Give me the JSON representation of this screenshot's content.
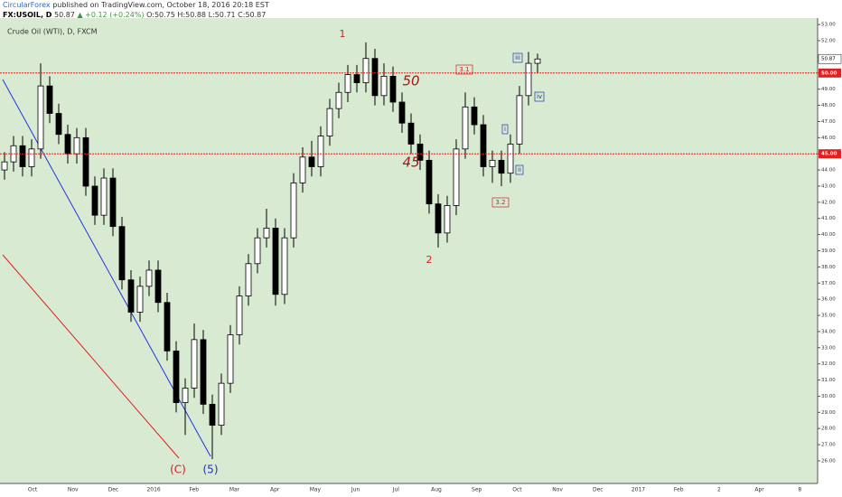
{
  "header": {
    "author": "CircularForex",
    "published": "published on TradingView.com, October 18, 2016 20:18 EST",
    "symbol": "FX:USOIL, D",
    "last": "50.87",
    "change": "▲ +0.12 (+0.24%)",
    "ohlc": "O:50.75 H:50.88 L:50.71 C:50.87"
  },
  "chart_data": {
    "type": "candlestick",
    "title": "Crude Oil (WTI), D, FXCM",
    "open": [
      44.0,
      44.5,
      45.5,
      44.2,
      45.3,
      49.2,
      47.5,
      46.2,
      45,
      46,
      43,
      41.2,
      43.5,
      40.5,
      37.2,
      35.2,
      36.8,
      37.8,
      35.8,
      32.8,
      29.6,
      30.5,
      33.5,
      29.5,
      28.2,
      30.8,
      33.8,
      36.2,
      38.2,
      39.8,
      40.4,
      36.3,
      39.8,
      43.2,
      44.8,
      44.2,
      46.1,
      47.8,
      48.8,
      49.9,
      49.4,
      50.9,
      48.6,
      49.8,
      48.2,
      46.9,
      45.6,
      44.6,
      41.9,
      40.1,
      41.8,
      45.3,
      47.9,
      46.8,
      44.2,
      44.6,
      43.8,
      45.6,
      48.6,
      50.6
    ],
    "high": [
      45.1,
      46.1,
      46.1,
      45.9,
      50.6,
      49.8,
      48.1,
      46.8,
      46.6,
      46.6,
      43.6,
      44.1,
      44.1,
      41.1,
      37.8,
      37.4,
      38.4,
      38.4,
      36.4,
      33.4,
      31.1,
      34.5,
      34.1,
      30.1,
      31.4,
      34.4,
      36.8,
      38.8,
      40.4,
      41.6,
      41.0,
      40.4,
      43.8,
      45.4,
      45.8,
      46.7,
      48.4,
      49.4,
      50.5,
      50.5,
      51.9,
      51.5,
      50.6,
      50.4,
      48.8,
      47.5,
      46.2,
      45.2,
      42.5,
      42.4,
      45.9,
      48.8,
      48.5,
      47.4,
      45.2,
      45.2,
      46.2,
      49.2,
      51.3,
      51.2
    ],
    "low": [
      43.4,
      43.9,
      43.6,
      43.6,
      44.7,
      46.9,
      45.6,
      44.4,
      44.4,
      42.4,
      40.6,
      40.6,
      39.9,
      36.6,
      34.6,
      34.6,
      36.2,
      35.2,
      32.2,
      29.0,
      27.6,
      29.9,
      28.9,
      26.1,
      27.6,
      30.2,
      33.2,
      35.6,
      37.6,
      39.2,
      35.6,
      35.7,
      39.2,
      42.6,
      43.6,
      43.6,
      45.5,
      47.2,
      48.2,
      48.8,
      48.8,
      48.0,
      48.0,
      47.6,
      46.3,
      45.0,
      44.0,
      41.3,
      39.2,
      39.5,
      41.2,
      44.7,
      46.2,
      43.6,
      43.2,
      43.0,
      43.2,
      45.0,
      48.0,
      50.0
    ],
    "close": [
      44.5,
      45.5,
      44.2,
      45.3,
      49.2,
      47.5,
      46.2,
      45,
      46,
      43,
      41.2,
      43.5,
      40.5,
      37.2,
      35.2,
      36.8,
      37.8,
      35.8,
      32.8,
      29.6,
      30.5,
      33.5,
      29.5,
      28.2,
      30.8,
      33.8,
      36.2,
      38.2,
      39.8,
      40.4,
      36.3,
      39.8,
      43.2,
      44.8,
      44.2,
      46.1,
      47.8,
      48.8,
      49.9,
      49.4,
      50.9,
      48.6,
      49.8,
      48.2,
      46.9,
      45.6,
      44.6,
      41.9,
      40.1,
      41.8,
      45.3,
      47.9,
      46.8,
      44.2,
      44.6,
      43.8,
      45.6,
      48.6,
      50.6,
      50.87
    ],
    "ylim": [
      24.6,
      53.4
    ],
    "yticks": [
      {
        "value": 53,
        "label": "53.00"
      },
      {
        "value": 52,
        "label": "52.00"
      },
      {
        "value": 51,
        "label": "51.00"
      },
      {
        "value": 50,
        "label": "50.00"
      },
      {
        "value": 49,
        "label": "49.00"
      },
      {
        "value": 48,
        "label": "48.00"
      },
      {
        "value": 47,
        "label": "47.00"
      },
      {
        "value": 46,
        "label": "46.00"
      },
      {
        "value": 45,
        "label": "45.00"
      },
      {
        "value": 44,
        "label": "44.00"
      },
      {
        "value": 43,
        "label": "43.00"
      },
      {
        "value": 42,
        "label": "42.00"
      },
      {
        "value": 41,
        "label": "41.00"
      },
      {
        "value": 40,
        "label": "40.00"
      },
      {
        "value": 39,
        "label": "39.00"
      },
      {
        "value": 38,
        "label": "38.00"
      },
      {
        "value": 37,
        "label": "37.00"
      },
      {
        "value": 36,
        "label": "36.00"
      },
      {
        "value": 35,
        "label": "35.00"
      },
      {
        "value": 34,
        "label": "34.00"
      },
      {
        "value": 33,
        "label": "33.00"
      },
      {
        "value": 32,
        "label": "32.00"
      },
      {
        "value": 31,
        "label": "31.00"
      },
      {
        "value": 30,
        "label": "30.00"
      },
      {
        "value": 29,
        "label": "29.00"
      },
      {
        "value": 28,
        "label": "28.00"
      },
      {
        "value": 27,
        "label": "27.00"
      },
      {
        "value": 26,
        "label": "26.00"
      }
    ],
    "x_labels": [
      "Oct",
      "Nov",
      "Dec",
      "2016",
      "Feb",
      "Mar",
      "Apr",
      "May",
      "Jun",
      "Jul",
      "Aug",
      "Sep",
      "Oct",
      "Nov",
      "Dec",
      "2017",
      "Feb",
      "2",
      "Apr",
      "8"
    ],
    "hlines": [
      {
        "value": 50,
        "label": "50.00"
      },
      {
        "value": 45,
        "label": "45.00"
      }
    ],
    "last_price": {
      "value": 50.87,
      "label": "50.87"
    },
    "annotations": {
      "wave1": "1",
      "wave2": "2",
      "level50": "50",
      "level45": "45",
      "c": "(C)",
      "five": "(5)",
      "w31": "3.1",
      "w32": "3.2",
      "i": "i",
      "ii": "ii",
      "iii": "iii",
      "iv": "iv"
    }
  }
}
